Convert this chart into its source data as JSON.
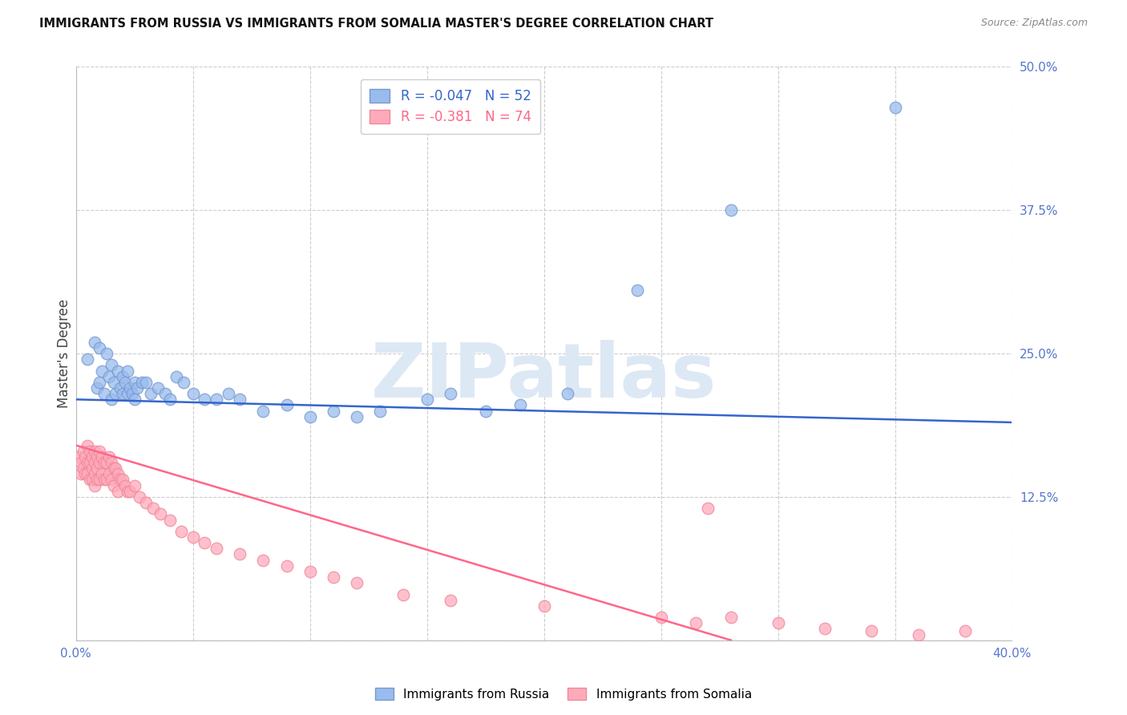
{
  "title": "IMMIGRANTS FROM RUSSIA VS IMMIGRANTS FROM SOMALIA MASTER'S DEGREE CORRELATION CHART",
  "source": "Source: ZipAtlas.com",
  "ylabel": "Master's Degree",
  "xlim": [
    0.0,
    0.4
  ],
  "ylim": [
    0.0,
    0.5
  ],
  "xticks": [
    0.0,
    0.05,
    0.1,
    0.15,
    0.2,
    0.25,
    0.3,
    0.35,
    0.4
  ],
  "xticklabels": [
    "0.0%",
    "",
    "",
    "",
    "",
    "",
    "",
    "",
    "40.0%"
  ],
  "yticks": [
    0.0,
    0.125,
    0.25,
    0.375,
    0.5
  ],
  "yticklabels": [
    "",
    "12.5%",
    "25.0%",
    "37.5%",
    "50.0%"
  ],
  "grid_color": "#cccccc",
  "background_color": "#ffffff",
  "russia_color": "#99bbee",
  "russia_edge": "#7799cc",
  "somalia_color": "#ffaabb",
  "somalia_edge": "#ee8899",
  "russia_R": -0.047,
  "russia_N": 52,
  "somalia_R": -0.381,
  "somalia_N": 74,
  "russia_line_color": "#3366cc",
  "somalia_line_color": "#ff6688",
  "watermark": "ZIPatlas",
  "watermark_color": "#dde8f5",
  "legend_russia": "Immigrants from Russia",
  "legend_somalia": "Immigrants from Somalia",
  "russia_x": [
    0.005,
    0.008,
    0.009,
    0.01,
    0.01,
    0.011,
    0.012,
    0.013,
    0.014,
    0.015,
    0.015,
    0.016,
    0.017,
    0.018,
    0.019,
    0.02,
    0.02,
    0.021,
    0.022,
    0.022,
    0.023,
    0.024,
    0.025,
    0.025,
    0.026,
    0.028,
    0.03,
    0.032,
    0.035,
    0.038,
    0.04,
    0.043,
    0.046,
    0.05,
    0.055,
    0.06,
    0.065,
    0.07,
    0.08,
    0.09,
    0.1,
    0.11,
    0.12,
    0.13,
    0.15,
    0.16,
    0.175,
    0.19,
    0.21,
    0.24,
    0.28,
    0.35
  ],
  "russia_y": [
    0.245,
    0.26,
    0.22,
    0.255,
    0.225,
    0.235,
    0.215,
    0.25,
    0.23,
    0.24,
    0.21,
    0.225,
    0.215,
    0.235,
    0.22,
    0.23,
    0.215,
    0.225,
    0.235,
    0.215,
    0.22,
    0.215,
    0.225,
    0.21,
    0.22,
    0.225,
    0.225,
    0.215,
    0.22,
    0.215,
    0.21,
    0.23,
    0.225,
    0.215,
    0.21,
    0.21,
    0.215,
    0.21,
    0.2,
    0.205,
    0.195,
    0.2,
    0.195,
    0.2,
    0.21,
    0.215,
    0.2,
    0.205,
    0.215,
    0.305,
    0.375,
    0.465
  ],
  "somalia_x": [
    0.001,
    0.002,
    0.002,
    0.003,
    0.003,
    0.004,
    0.004,
    0.005,
    0.005,
    0.005,
    0.006,
    0.006,
    0.006,
    0.007,
    0.007,
    0.007,
    0.008,
    0.008,
    0.008,
    0.008,
    0.009,
    0.009,
    0.009,
    0.01,
    0.01,
    0.01,
    0.011,
    0.011,
    0.012,
    0.012,
    0.013,
    0.013,
    0.014,
    0.014,
    0.015,
    0.015,
    0.016,
    0.016,
    0.017,
    0.018,
    0.018,
    0.019,
    0.02,
    0.021,
    0.022,
    0.023,
    0.025,
    0.027,
    0.03,
    0.033,
    0.036,
    0.04,
    0.045,
    0.05,
    0.055,
    0.06,
    0.07,
    0.08,
    0.09,
    0.1,
    0.11,
    0.12,
    0.14,
    0.16,
    0.2,
    0.25,
    0.265,
    0.28,
    0.3,
    0.32,
    0.34,
    0.36,
    0.38,
    0.27
  ],
  "somalia_y": [
    0.16,
    0.155,
    0.145,
    0.165,
    0.15,
    0.16,
    0.145,
    0.17,
    0.155,
    0.145,
    0.165,
    0.155,
    0.14,
    0.16,
    0.15,
    0.14,
    0.165,
    0.155,
    0.145,
    0.135,
    0.16,
    0.15,
    0.14,
    0.165,
    0.155,
    0.14,
    0.16,
    0.145,
    0.155,
    0.14,
    0.155,
    0.14,
    0.16,
    0.145,
    0.155,
    0.14,
    0.15,
    0.135,
    0.15,
    0.145,
    0.13,
    0.14,
    0.14,
    0.135,
    0.13,
    0.13,
    0.135,
    0.125,
    0.12,
    0.115,
    0.11,
    0.105,
    0.095,
    0.09,
    0.085,
    0.08,
    0.075,
    0.07,
    0.065,
    0.06,
    0.055,
    0.05,
    0.04,
    0.035,
    0.03,
    0.02,
    0.015,
    0.02,
    0.015,
    0.01,
    0.008,
    0.005,
    0.008,
    0.115
  ]
}
